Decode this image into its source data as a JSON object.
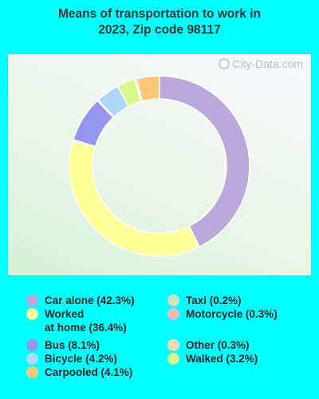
{
  "title": {
    "line1": "Means of transportation to work in",
    "line2": "2023, Zip code 98117"
  },
  "watermark": "City-Data.com",
  "chart_data": {
    "type": "pie",
    "variant": "donut",
    "title": "Means of transportation to work in 2023, Zip code 98117",
    "slices": [
      {
        "label": "Car alone",
        "value": 42.3,
        "color": "#BBA8DB"
      },
      {
        "label": "Worked at home",
        "value": 36.4,
        "color": "#FFFF99"
      },
      {
        "label": "Motorcycle",
        "value": 0.3,
        "color": "#F2B8B8"
      },
      {
        "label": "Bus",
        "value": 8.1,
        "color": "#9595EF"
      },
      {
        "label": "Taxi",
        "value": 0.2,
        "color": "#CFE3B8"
      },
      {
        "label": "Bicycle",
        "value": 4.2,
        "color": "#ADD8F8"
      },
      {
        "label": "Walked",
        "value": 3.2,
        "color": "#D9F78A"
      },
      {
        "label": "Other",
        "value": 0.3,
        "color": "#F8D8B0"
      },
      {
        "label": "Carpooled",
        "value": 4.1,
        "color": "#FFC77A"
      }
    ],
    "legend_placement": "bottom"
  },
  "legend": [
    {
      "name": "Car alone",
      "pct": "(42.3%)",
      "color": "#BBA8DB"
    },
    {
      "name": "Worked at home",
      "pct": "(36.4%)",
      "color": "#FFFF99",
      "wrap": true
    },
    {
      "name": "Bus",
      "pct": "(8.1%)",
      "color": "#9595EF"
    },
    {
      "name": "Bicycle",
      "pct": "(4.2%)",
      "color": "#ADD8F8"
    },
    {
      "name": "Carpooled",
      "pct": "(4.1%)",
      "color": "#FFC77A"
    },
    {
      "name": "Taxi",
      "pct": "(0.2%)",
      "color": "#CFE3B8"
    },
    {
      "name": "Motorcycle",
      "pct": "(0.3%)",
      "color": "#F2B8B8"
    },
    {
      "name": "Other",
      "pct": "(0.3%)",
      "color": "#F8D8B0"
    },
    {
      "name": "Walked",
      "pct": "(3.2%)",
      "color": "#D9F78A"
    }
  ]
}
